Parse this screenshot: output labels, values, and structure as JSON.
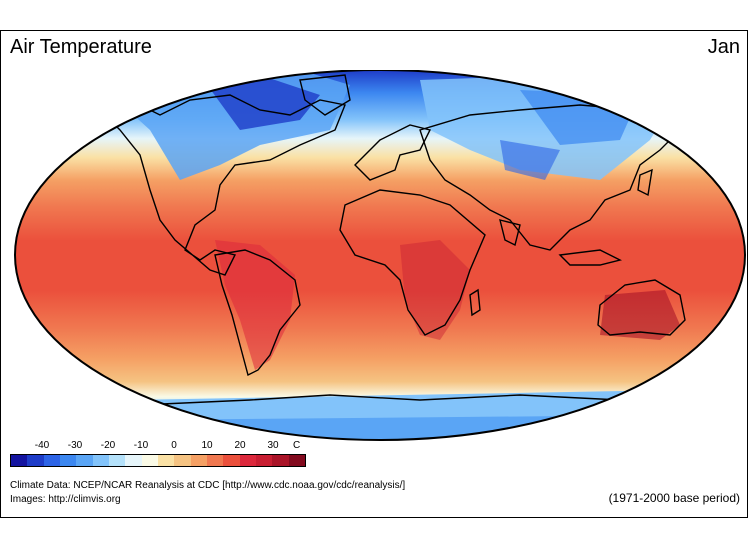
{
  "title": "Air Temperature",
  "month": "Jan",
  "legend": {
    "ticks": [
      "-40",
      "-30",
      "-20",
      "-10",
      "0",
      "10",
      "20",
      "30"
    ],
    "unit": "C",
    "colors": [
      "#1414a0",
      "#1e3cc8",
      "#2d64e6",
      "#3c87f0",
      "#5aa5f5",
      "#82c3fa",
      "#b4e1fa",
      "#e6f5fa",
      "#fafae6",
      "#fae1a5",
      "#f5c382",
      "#f5a064",
      "#f07850",
      "#eb503c",
      "#dc283c",
      "#c81e32",
      "#aa1428",
      "#820a1e"
    ]
  },
  "credits": {
    "line1": "Climate Data:  NCEP/NCAR Reanalysis at CDC [http://www.cdc.noaa.gov/cdc/reanalysis/]",
    "line2": "Images:  http://climvis.org"
  },
  "base_period": "(1971-2000 base period)"
}
